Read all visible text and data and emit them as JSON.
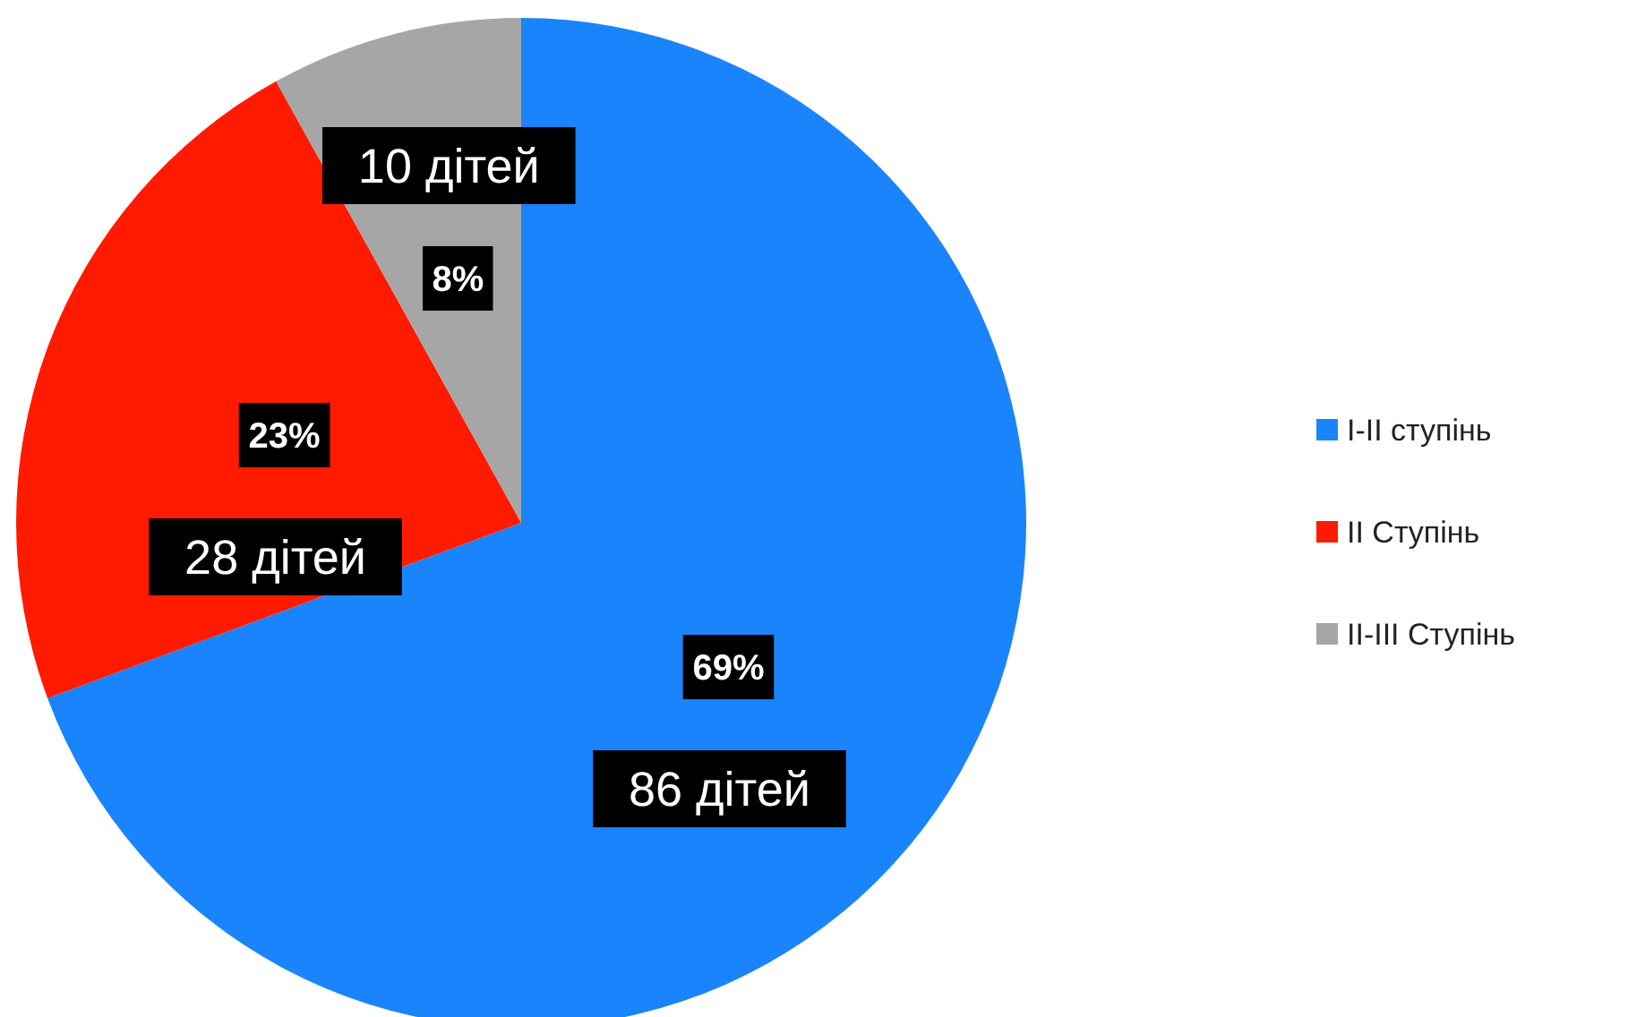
{
  "chart_data": {
    "type": "pie",
    "categories": [
      "I-II ступінь",
      "II Ступінь",
      "II-III Ступінь"
    ],
    "values": [
      86,
      28,
      10
    ],
    "colors": [
      "#1a84fc",
      "#ff1a00",
      "#a6a6a6"
    ],
    "value_labels": [
      "86 дітей",
      "28 дітей",
      "10 дітей"
    ],
    "annotations": [
      {
        "text": "69%",
        "x": "I-II ступінь"
      },
      {
        "text": "23%",
        "x": "II Ступінь"
      },
      {
        "text": "8%",
        "x": "II-III Ступінь"
      }
    ],
    "legend": "right"
  }
}
